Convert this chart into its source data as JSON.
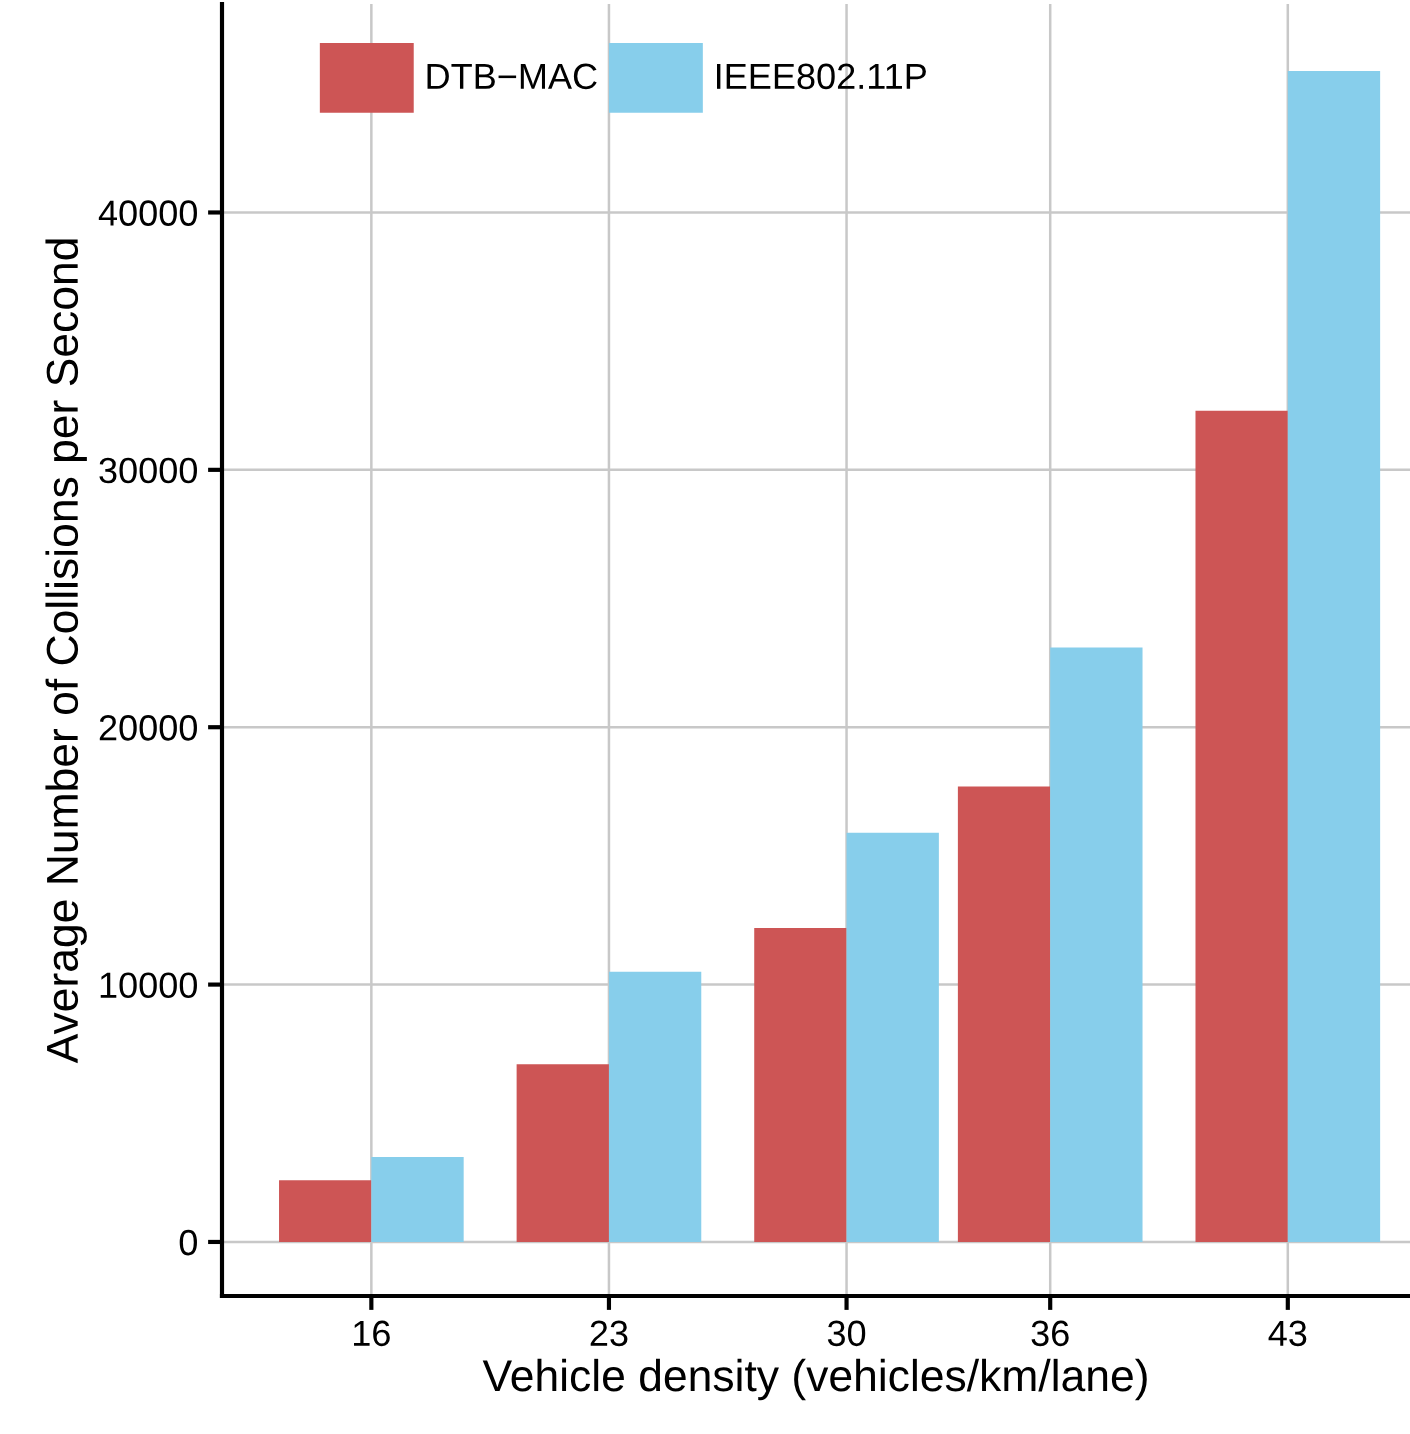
{
  "chart_data": {
    "type": "bar",
    "xlabel": "Vehicle density (vehicles/km/lane)",
    "ylabel": "Average Number of Collisions per Second",
    "x": [
      16,
      23,
      30,
      36,
      43
    ],
    "series": [
      {
        "name": "DTB−MAC",
        "color": "#cd5555",
        "values": [
          2400,
          6900,
          12200,
          17700,
          32300
        ]
      },
      {
        "name": "IEEE802.11P",
        "color": "#87ceeb",
        "values": [
          3300,
          10500,
          15900,
          23100,
          45500
        ]
      }
    ],
    "xlim": [
      11.6,
      46.6
    ],
    "xticks": [
      16,
      23,
      30,
      36,
      43
    ],
    "ylim": [
      -2100,
      48100
    ],
    "yticks": [
      0,
      10000,
      20000,
      30000,
      40000
    ],
    "grid": true,
    "legend": "top left"
  }
}
